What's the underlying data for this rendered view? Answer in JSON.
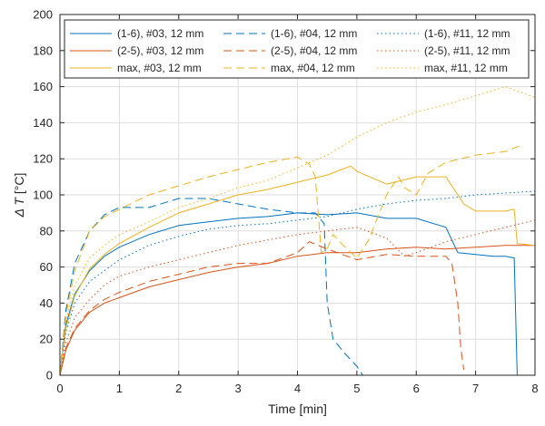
{
  "chart_data": {
    "type": "line",
    "title": "",
    "xlabel": "Time [min]",
    "ylabel_symbol": "Δ T",
    "ylabel_unit": "[°C]",
    "xlim": [
      0,
      8
    ],
    "ylim": [
      0,
      200
    ],
    "xticks": [
      "0",
      "1",
      "2",
      "3",
      "4",
      "5",
      "6",
      "7",
      "8"
    ],
    "yticks": [
      "0",
      "20",
      "40",
      "60",
      "80",
      "100",
      "120",
      "140",
      "160",
      "180",
      "200"
    ],
    "grid": true,
    "legend_position": "top",
    "colors": {
      "blue": "#0072BD",
      "orange": "#D95319",
      "yellow": "#EDB120",
      "axis": "#262626",
      "grid": "#dedede"
    },
    "series": [
      {
        "name": "(1-6), #03, 12 mm",
        "color": "blue",
        "dash": "solid",
        "x": [
          0,
          0.1,
          0.25,
          0.5,
          0.75,
          1,
          1.5,
          2,
          2.5,
          3,
          3.5,
          4,
          4.5,
          5,
          5.5,
          6,
          6.5,
          6.7,
          7,
          7.3,
          7.5,
          7.65,
          7.7,
          7.8
        ],
        "y": [
          0,
          28,
          45,
          58,
          66,
          71,
          78,
          83,
          85,
          87,
          88,
          90,
          89,
          90,
          87,
          87,
          82,
          68,
          67,
          66,
          66,
          65,
          0,
          0
        ]
      },
      {
        "name": "(2-5), #03, 12 mm",
        "color": "orange",
        "dash": "solid",
        "x": [
          0,
          0.1,
          0.25,
          0.5,
          0.75,
          1,
          1.5,
          2,
          2.5,
          3,
          3.5,
          4,
          4.5,
          5,
          5.5,
          6,
          6.5,
          7,
          7.5,
          8
        ],
        "y": [
          0,
          14,
          25,
          35,
          40,
          43,
          49,
          53,
          57,
          60,
          62,
          66,
          68,
          68,
          70,
          71,
          70,
          71,
          72,
          72
        ]
      },
      {
        "name": "max, #03, 12 mm",
        "color": "yellow",
        "dash": "solid",
        "x": [
          0,
          0.1,
          0.25,
          0.5,
          0.75,
          1,
          1.5,
          2,
          2.5,
          3,
          3.5,
          4,
          4.5,
          4.9,
          5,
          5.5,
          6,
          6.5,
          6.8,
          7,
          7.5,
          7.65,
          7.7,
          8
        ],
        "y": [
          0,
          26,
          44,
          59,
          67,
          73,
          82,
          90,
          95,
          100,
          103,
          107,
          111,
          116,
          113,
          106,
          110,
          110,
          95,
          91,
          91,
          92,
          73,
          72
        ]
      },
      {
        "name": "(1-6), #04, 12 mm",
        "color": "blue",
        "dash": "dash",
        "x": [
          0,
          0.1,
          0.25,
          0.5,
          0.75,
          1,
          1.5,
          2,
          2.5,
          3,
          3.5,
          4,
          4.3,
          4.45,
          4.5,
          4.6,
          4.8,
          5,
          5.1,
          5.2
        ],
        "y": [
          0,
          36,
          62,
          80,
          89,
          93,
          93,
          98,
          98,
          95,
          92,
          90,
          90,
          84,
          40,
          20,
          12,
          5,
          0,
          0
        ]
      },
      {
        "name": "(2-5), #04, 12 mm",
        "color": "orange",
        "dash": "dash",
        "x": [
          0,
          0.1,
          0.25,
          0.5,
          0.75,
          1,
          1.5,
          2,
          2.5,
          3,
          3.5,
          4,
          4.2,
          4.5,
          5,
          5.5,
          6,
          6.5,
          6.6,
          6.7,
          6.75,
          6.8
        ],
        "y": [
          0,
          15,
          26,
          36,
          42,
          46,
          52,
          56,
          60,
          62,
          62,
          68,
          74,
          70,
          64,
          67,
          66,
          66,
          62,
          40,
          15,
          3
        ]
      },
      {
        "name": "max, #04, 12 mm",
        "color": "yellow",
        "dash": "dash",
        "x": [
          0,
          0.1,
          0.25,
          0.5,
          0.75,
          1,
          1.5,
          2,
          2.5,
          3,
          3.5,
          4,
          4.2,
          4.3,
          4.4,
          4.5,
          4.6,
          4.8,
          5,
          5.2,
          5.5,
          5.7,
          5.8,
          6,
          6.2,
          6.5,
          7,
          7.5,
          7.8
        ],
        "y": [
          0,
          33,
          58,
          80,
          88,
          92,
          100,
          105,
          110,
          114,
          118,
          121,
          117,
          110,
          68,
          70,
          78,
          71,
          65,
          75,
          100,
          110,
          104,
          100,
          112,
          118,
          122,
          124,
          128
        ]
      },
      {
        "name": "(1-6), #11, 12 mm",
        "color": "blue",
        "dash": "dot",
        "x": [
          0,
          0.1,
          0.25,
          0.5,
          0.75,
          1,
          1.5,
          2,
          2.5,
          3,
          3.5,
          4,
          4.5,
          5,
          5.5,
          6,
          6.5,
          7,
          7.5,
          8
        ],
        "y": [
          0,
          24,
          40,
          52,
          58,
          64,
          72,
          77,
          81,
          83,
          84,
          86,
          88,
          92,
          95,
          97,
          98,
          100,
          101,
          102
        ]
      },
      {
        "name": "(2-5), #11, 12 mm",
        "color": "orange",
        "dash": "dot",
        "x": [
          0,
          0.1,
          0.25,
          0.5,
          0.75,
          1,
          1.5,
          2,
          2.5,
          3,
          3.5,
          4,
          4.5,
          5,
          5.5,
          5.8,
          6,
          6.5,
          7,
          7.5,
          8
        ],
        "y": [
          0,
          18,
          32,
          42,
          50,
          55,
          60,
          64,
          68,
          72,
          75,
          78,
          80,
          82,
          76,
          66,
          68,
          74,
          78,
          82,
          86
        ]
      },
      {
        "name": "max, #11, 12 mm",
        "color": "yellow",
        "dash": "dot",
        "x": [
          0,
          0.1,
          0.25,
          0.5,
          0.75,
          1,
          1.5,
          2,
          2.5,
          3,
          3.5,
          4,
          4.5,
          5,
          5.5,
          6,
          6.5,
          7,
          7.5,
          8
        ],
        "y": [
          0,
          30,
          50,
          65,
          72,
          78,
          85,
          93,
          98,
          104,
          108,
          115,
          122,
          132,
          140,
          146,
          150,
          155,
          160,
          154
        ]
      }
    ]
  }
}
